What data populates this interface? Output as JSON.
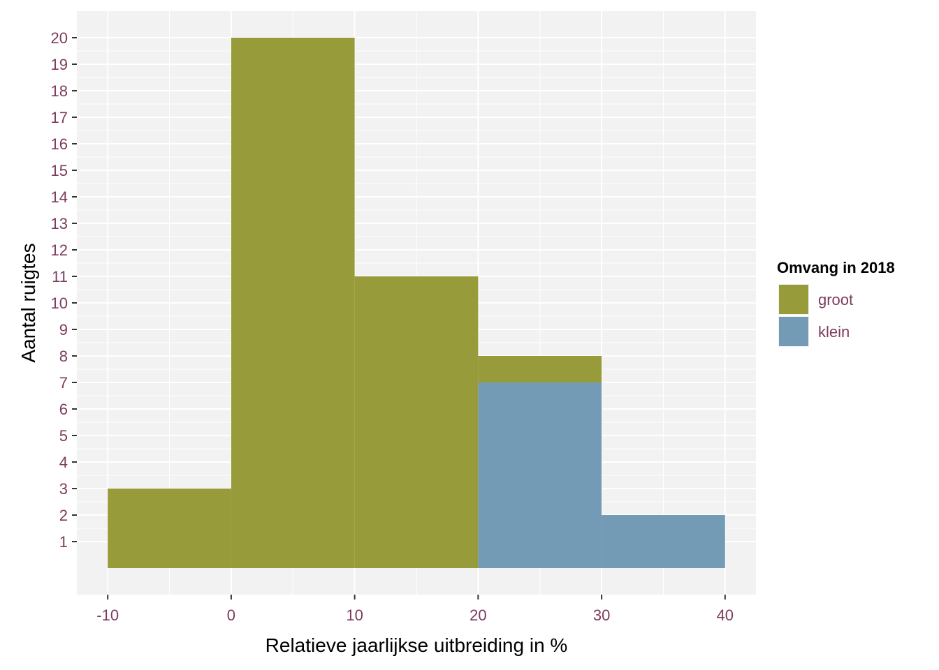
{
  "chart_data": {
    "type": "bar",
    "subtype": "stacked-histogram",
    "xlabel": "Relatieve jaarlijkse uitbreiding in %",
    "ylabel": "Aantal ruigtes",
    "xlim": [
      -12.5,
      42.5
    ],
    "ylim": [
      -1,
      21
    ],
    "x_ticks": [
      -10,
      0,
      10,
      20,
      30,
      40
    ],
    "y_ticks": [
      1,
      2,
      3,
      4,
      5,
      6,
      7,
      8,
      9,
      10,
      11,
      12,
      13,
      14,
      15,
      16,
      17,
      18,
      19,
      20
    ],
    "bin_width": 10,
    "bins": [
      {
        "x0": -10,
        "x1": 0
      },
      {
        "x0": 0,
        "x1": 10
      },
      {
        "x0": 10,
        "x1": 20
      },
      {
        "x0": 20,
        "x1": 30
      },
      {
        "x0": 30,
        "x1": 40
      }
    ],
    "series": [
      {
        "name": "groot",
        "color": "#979b3a",
        "values": [
          3,
          20,
          11,
          1,
          0
        ]
      },
      {
        "name": "klein",
        "color": "#739bb6",
        "values": [
          0,
          0,
          0,
          7,
          2
        ]
      }
    ],
    "stack_order": [
      "klein",
      "groot"
    ],
    "legend": {
      "title": "Omvang in 2018",
      "position": "right"
    },
    "grid": true,
    "panel_background": "#f2f2f2",
    "grid_color": "#ffffff",
    "tick_label_color": "#7d3a5e"
  }
}
